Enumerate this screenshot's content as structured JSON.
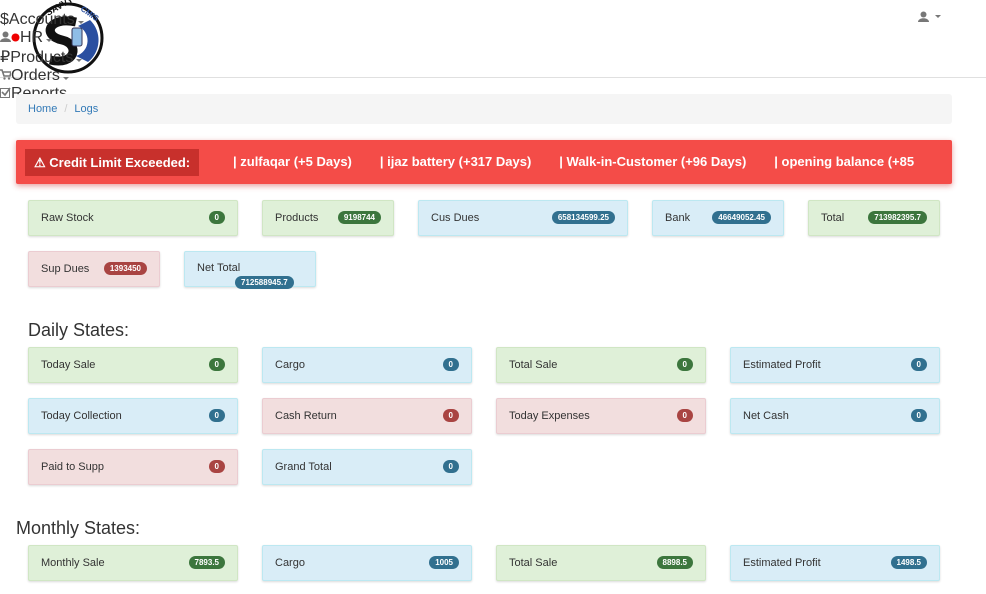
{
  "logo": {
    "text": [
      "SAVVY",
      "CMIS"
    ]
  },
  "nav": [
    {
      "icon": "$",
      "label": "Accounts"
    },
    {
      "label": "HR"
    },
    {
      "icon": "₽",
      "label": "Products"
    },
    {
      "label": "Orders"
    },
    {
      "label": "Reports"
    }
  ],
  "breadcrumb": {
    "items": [
      "Home",
      "Logs"
    ],
    "separator": "/"
  },
  "alert": {
    "label": "⚠ Credit Limit Exceeded:",
    "items": [
      "| zulfaqar (+5 Days)",
      "| ijaz battery (+317 Days)",
      "| Walk-in-Customer (+96 Days)",
      "| opening balance (+85"
    ]
  },
  "summary": [
    {
      "label": "Raw Stock",
      "value": "0",
      "color": "success"
    },
    {
      "label": "Products",
      "value": "9198744",
      "color": "success"
    },
    {
      "label": "Cus Dues",
      "value": "658134599.25",
      "color": "info"
    },
    {
      "label": "Bank",
      "value": "46649052.45",
      "color": "info"
    },
    {
      "label": "Total",
      "value": "713982395.7",
      "color": "success"
    },
    {
      "label": "Sup Dues",
      "value": "1393450",
      "color": "danger"
    },
    {
      "label": "Net Total",
      "value": "712588945.7",
      "color": "info"
    }
  ],
  "daily": {
    "title": "Daily States:",
    "cards": [
      {
        "label": "Today Sale",
        "value": "0",
        "color": "success"
      },
      {
        "label": "Cargo",
        "value": "0",
        "color": "info"
      },
      {
        "label": "Total Sale",
        "value": "0",
        "color": "success"
      },
      {
        "label": "Estimated Profit",
        "value": "0",
        "color": "info"
      },
      {
        "label": "Today Collection",
        "value": "0",
        "color": "info"
      },
      {
        "label": "Cash Return",
        "value": "0",
        "color": "danger"
      },
      {
        "label": "Today Expenses",
        "value": "0",
        "color": "danger"
      },
      {
        "label": "Net Cash",
        "value": "0",
        "color": "info"
      },
      {
        "label": "Paid to Supp",
        "value": "0",
        "color": "danger"
      },
      {
        "label": "Grand Total",
        "value": "0",
        "color": "info"
      }
    ]
  },
  "monthly": {
    "title": "Monthly States:",
    "cards": [
      {
        "label": "Monthly Sale",
        "value": "7893.5",
        "color": "success"
      },
      {
        "label": "Cargo",
        "value": "1005",
        "color": "info"
      },
      {
        "label": "Total Sale",
        "value": "8898.5",
        "color": "success"
      },
      {
        "label": "Estimated Profit",
        "value": "1498.5",
        "color": "info"
      }
    ]
  }
}
